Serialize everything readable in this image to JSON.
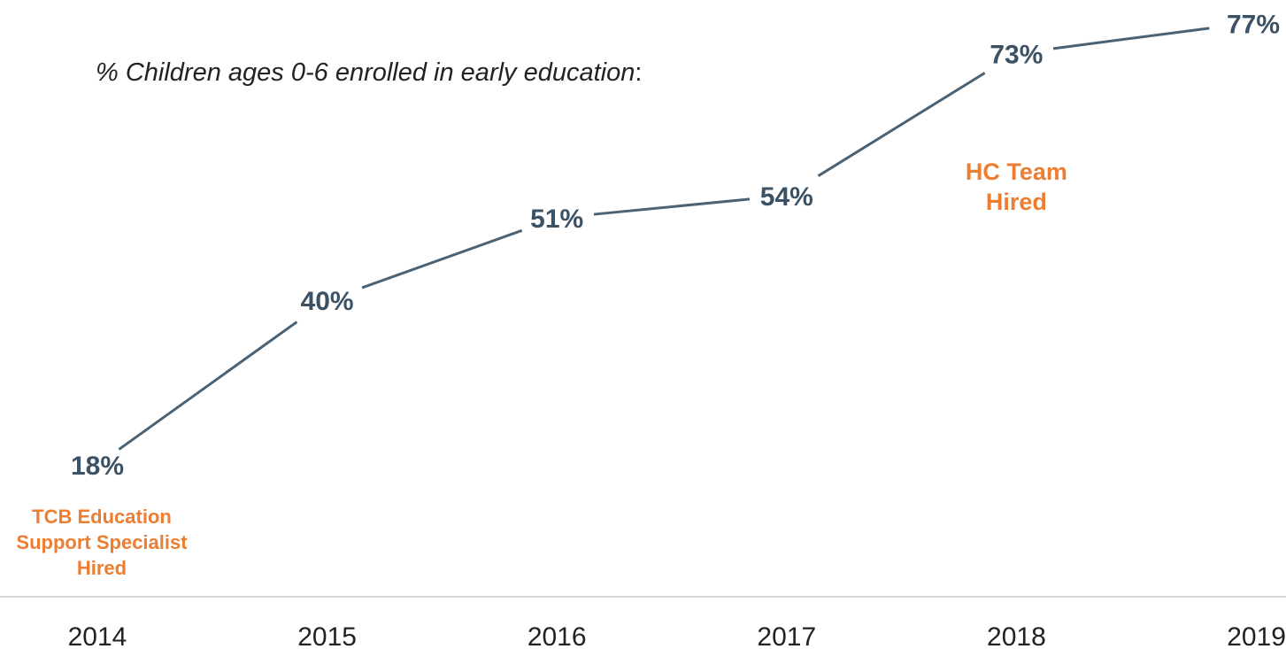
{
  "subtitle": {
    "text": "% Children ages 0-6 enrolled in early education",
    "suffix": ":"
  },
  "colors": {
    "line": "#4a6274",
    "label": "#3b5266",
    "annotation": "#ed7d31",
    "axis": "#d9d9d9"
  },
  "chart_data": {
    "type": "line",
    "x": [
      "2014",
      "2015",
      "2016",
      "2017",
      "2018",
      "2019"
    ],
    "series": [
      {
        "values": [
          18,
          40,
          51,
          54,
          73,
          77
        ],
        "labels": [
          "18%",
          "40%",
          "51%",
          "54%",
          "73%",
          "77%"
        ]
      }
    ],
    "xlabel": "",
    "ylabel": "",
    "grid": false,
    "legend": "none",
    "annotations": [
      {
        "x": "2014",
        "lines": [
          "TCB Education",
          "Support Specialist",
          "Hired"
        ]
      },
      {
        "x": "2018",
        "lines": [
          "HC Team",
          "Hired"
        ]
      }
    ]
  }
}
